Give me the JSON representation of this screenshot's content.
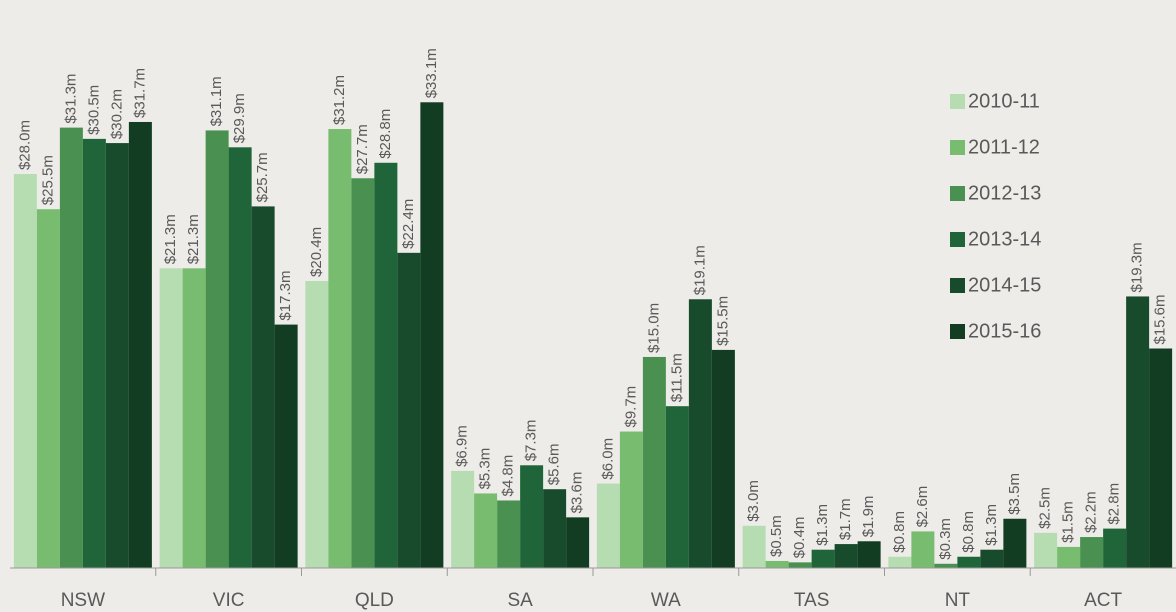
{
  "chart_data": {
    "type": "bar",
    "categories": [
      "NSW",
      "VIC",
      "QLD",
      "SA",
      "WA",
      "TAS",
      "NT",
      "ACT"
    ],
    "series": [
      {
        "name": "2010-11",
        "color": "#b6dcb1",
        "values": [
          28.0,
          21.3,
          20.4,
          6.9,
          6.0,
          3.0,
          0.8,
          2.5
        ],
        "value_labels": [
          "$28.0m",
          "$21.3m",
          "$20.4m",
          "$6.9m",
          "$6.0m",
          "$3.0m",
          "$0.8m",
          "$2.5m"
        ]
      },
      {
        "name": "2011-12",
        "color": "#78bd6f",
        "values": [
          25.5,
          21.3,
          31.2,
          5.3,
          9.7,
          0.5,
          2.6,
          1.5
        ],
        "value_labels": [
          "$25.5m",
          "$21.3m",
          "$31.2m",
          "$5.3m",
          "$9.7m",
          "$0.5m",
          "$2.6m",
          "$1.5m"
        ]
      },
      {
        "name": "2012-13",
        "color": "#4a9151",
        "values": [
          31.3,
          31.1,
          27.7,
          4.8,
          15.0,
          0.4,
          0.3,
          2.2
        ],
        "value_labels": [
          "$31.3m",
          "$31.1m",
          "$27.7m",
          "$4.8m",
          "$15.0m",
          "$0.4m",
          "$0.3m",
          "$2.2m"
        ]
      },
      {
        "name": "2013-14",
        "color": "#1f6539",
        "values": [
          30.5,
          29.9,
          28.8,
          7.3,
          11.5,
          1.3,
          0.8,
          2.8
        ],
        "value_labels": [
          "$30.5m",
          "$29.9m",
          "$28.8m",
          "$7.3m",
          "$11.5m",
          "$1.3m",
          "$0.8m",
          "$2.8m"
        ]
      },
      {
        "name": "2014-15",
        "color": "#184b2b",
        "values": [
          30.2,
          25.7,
          22.4,
          5.6,
          19.1,
          1.7,
          1.3,
          19.3
        ],
        "value_labels": [
          "$30.2m",
          "$25.7m",
          "$22.4m",
          "$5.6m",
          "$19.1m",
          "$1.7m",
          "$1.3m",
          "$19.3m"
        ]
      },
      {
        "name": "2015-16",
        "color": "#123d22",
        "values": [
          31.7,
          17.3,
          33.1,
          3.6,
          15.5,
          1.9,
          3.5,
          15.6
        ],
        "value_labels": [
          "$31.7m",
          "$17.3m",
          "$33.1m",
          "$3.6m",
          "$15.5m",
          "$1.9m",
          "$3.5m",
          "$15.6m"
        ]
      }
    ],
    "legend": "right"
  }
}
